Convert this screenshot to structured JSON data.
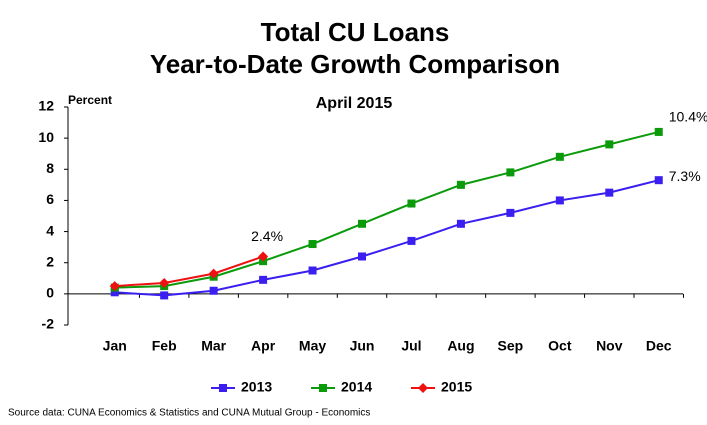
{
  "chart_data": {
    "type": "line",
    "title": [
      "Total CU Loans",
      "Year-to-Date Growth Comparison"
    ],
    "subtitle": "April 2015",
    "y_axis_label": "Percent",
    "source": "Source data: CUNA Economics & Statistics and CUNA Mutual Group - Economics",
    "categories": [
      "Jan",
      "Feb",
      "Mar",
      "Apr",
      "May",
      "Jun",
      "Jul",
      "Aug",
      "Sep",
      "Oct",
      "Nov",
      "Dec"
    ],
    "series": [
      {
        "name": "2013",
        "color": "#3a1ff0",
        "marker": "square",
        "values": [
          0.1,
          -0.1,
          0.2,
          0.9,
          1.5,
          2.4,
          3.4,
          4.5,
          5.2,
          6.0,
          6.5,
          7.3
        ],
        "value_labels": [
          null,
          null,
          null,
          null,
          null,
          null,
          null,
          null,
          null,
          null,
          null,
          "7.3%"
        ]
      },
      {
        "name": "2014",
        "color": "#0a9a0a",
        "marker": "square",
        "values": [
          0.4,
          0.5,
          1.1,
          2.1,
          3.2,
          4.5,
          5.8,
          7.0,
          7.8,
          8.8,
          9.6,
          10.4
        ],
        "value_labels": [
          null,
          null,
          null,
          null,
          null,
          null,
          null,
          null,
          null,
          null,
          null,
          "10.4%"
        ]
      },
      {
        "name": "2015",
        "color": "#ee1111",
        "marker": "diamond",
        "values": [
          0.5,
          0.7,
          1.3,
          2.4,
          null,
          null,
          null,
          null,
          null,
          null,
          null,
          null
        ],
        "value_labels": [
          null,
          null,
          null,
          "2.4%",
          null,
          null,
          null,
          null,
          null,
          null,
          null,
          null
        ]
      }
    ],
    "ylim": [
      -2,
      12
    ],
    "yticks": [
      -2,
      0,
      2,
      4,
      6,
      8,
      10,
      12
    ],
    "grid": false,
    "legend": "bottom"
  }
}
